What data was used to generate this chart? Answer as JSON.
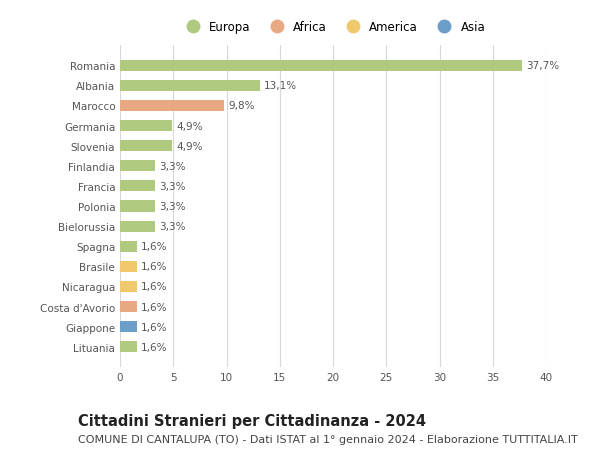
{
  "countries": [
    "Romania",
    "Albania",
    "Marocco",
    "Germania",
    "Slovenia",
    "Finlandia",
    "Francia",
    "Polonia",
    "Bielorussia",
    "Spagna",
    "Brasile",
    "Nicaragua",
    "Costa d'Avorio",
    "Giappone",
    "Lituania"
  ],
  "values": [
    37.7,
    13.1,
    9.8,
    4.9,
    4.9,
    3.3,
    3.3,
    3.3,
    3.3,
    1.6,
    1.6,
    1.6,
    1.6,
    1.6,
    1.6
  ],
  "continents": [
    "Europa",
    "Europa",
    "Africa",
    "Europa",
    "Europa",
    "Europa",
    "Europa",
    "Europa",
    "Europa",
    "Europa",
    "America",
    "America",
    "Africa",
    "Asia",
    "Europa"
  ],
  "labels": [
    "37,7%",
    "13,1%",
    "9,8%",
    "4,9%",
    "4,9%",
    "3,3%",
    "3,3%",
    "3,3%",
    "3,3%",
    "1,6%",
    "1,6%",
    "1,6%",
    "1,6%",
    "1,6%",
    "1,6%"
  ],
  "continent_colors": {
    "Europa": "#afc97e",
    "Africa": "#e8a882",
    "America": "#f0c96e",
    "Asia": "#6b9ec9"
  },
  "legend_order": [
    "Europa",
    "Africa",
    "America",
    "Asia"
  ],
  "xlim": [
    0,
    40
  ],
  "xticks": [
    0,
    5,
    10,
    15,
    20,
    25,
    30,
    35,
    40
  ],
  "title": "Cittadini Stranieri per Cittadinanza - 2024",
  "subtitle": "COMUNE DI CANTALUPA (TO) - Dati ISTAT al 1° gennaio 2024 - Elaborazione TUTTITALIA.IT",
  "background_color": "#ffffff",
  "grid_color": "#d8d8d8",
  "bar_height": 0.55,
  "title_fontsize": 10.5,
  "subtitle_fontsize": 8,
  "label_fontsize": 7.5,
  "tick_fontsize": 7.5,
  "legend_fontsize": 8.5
}
